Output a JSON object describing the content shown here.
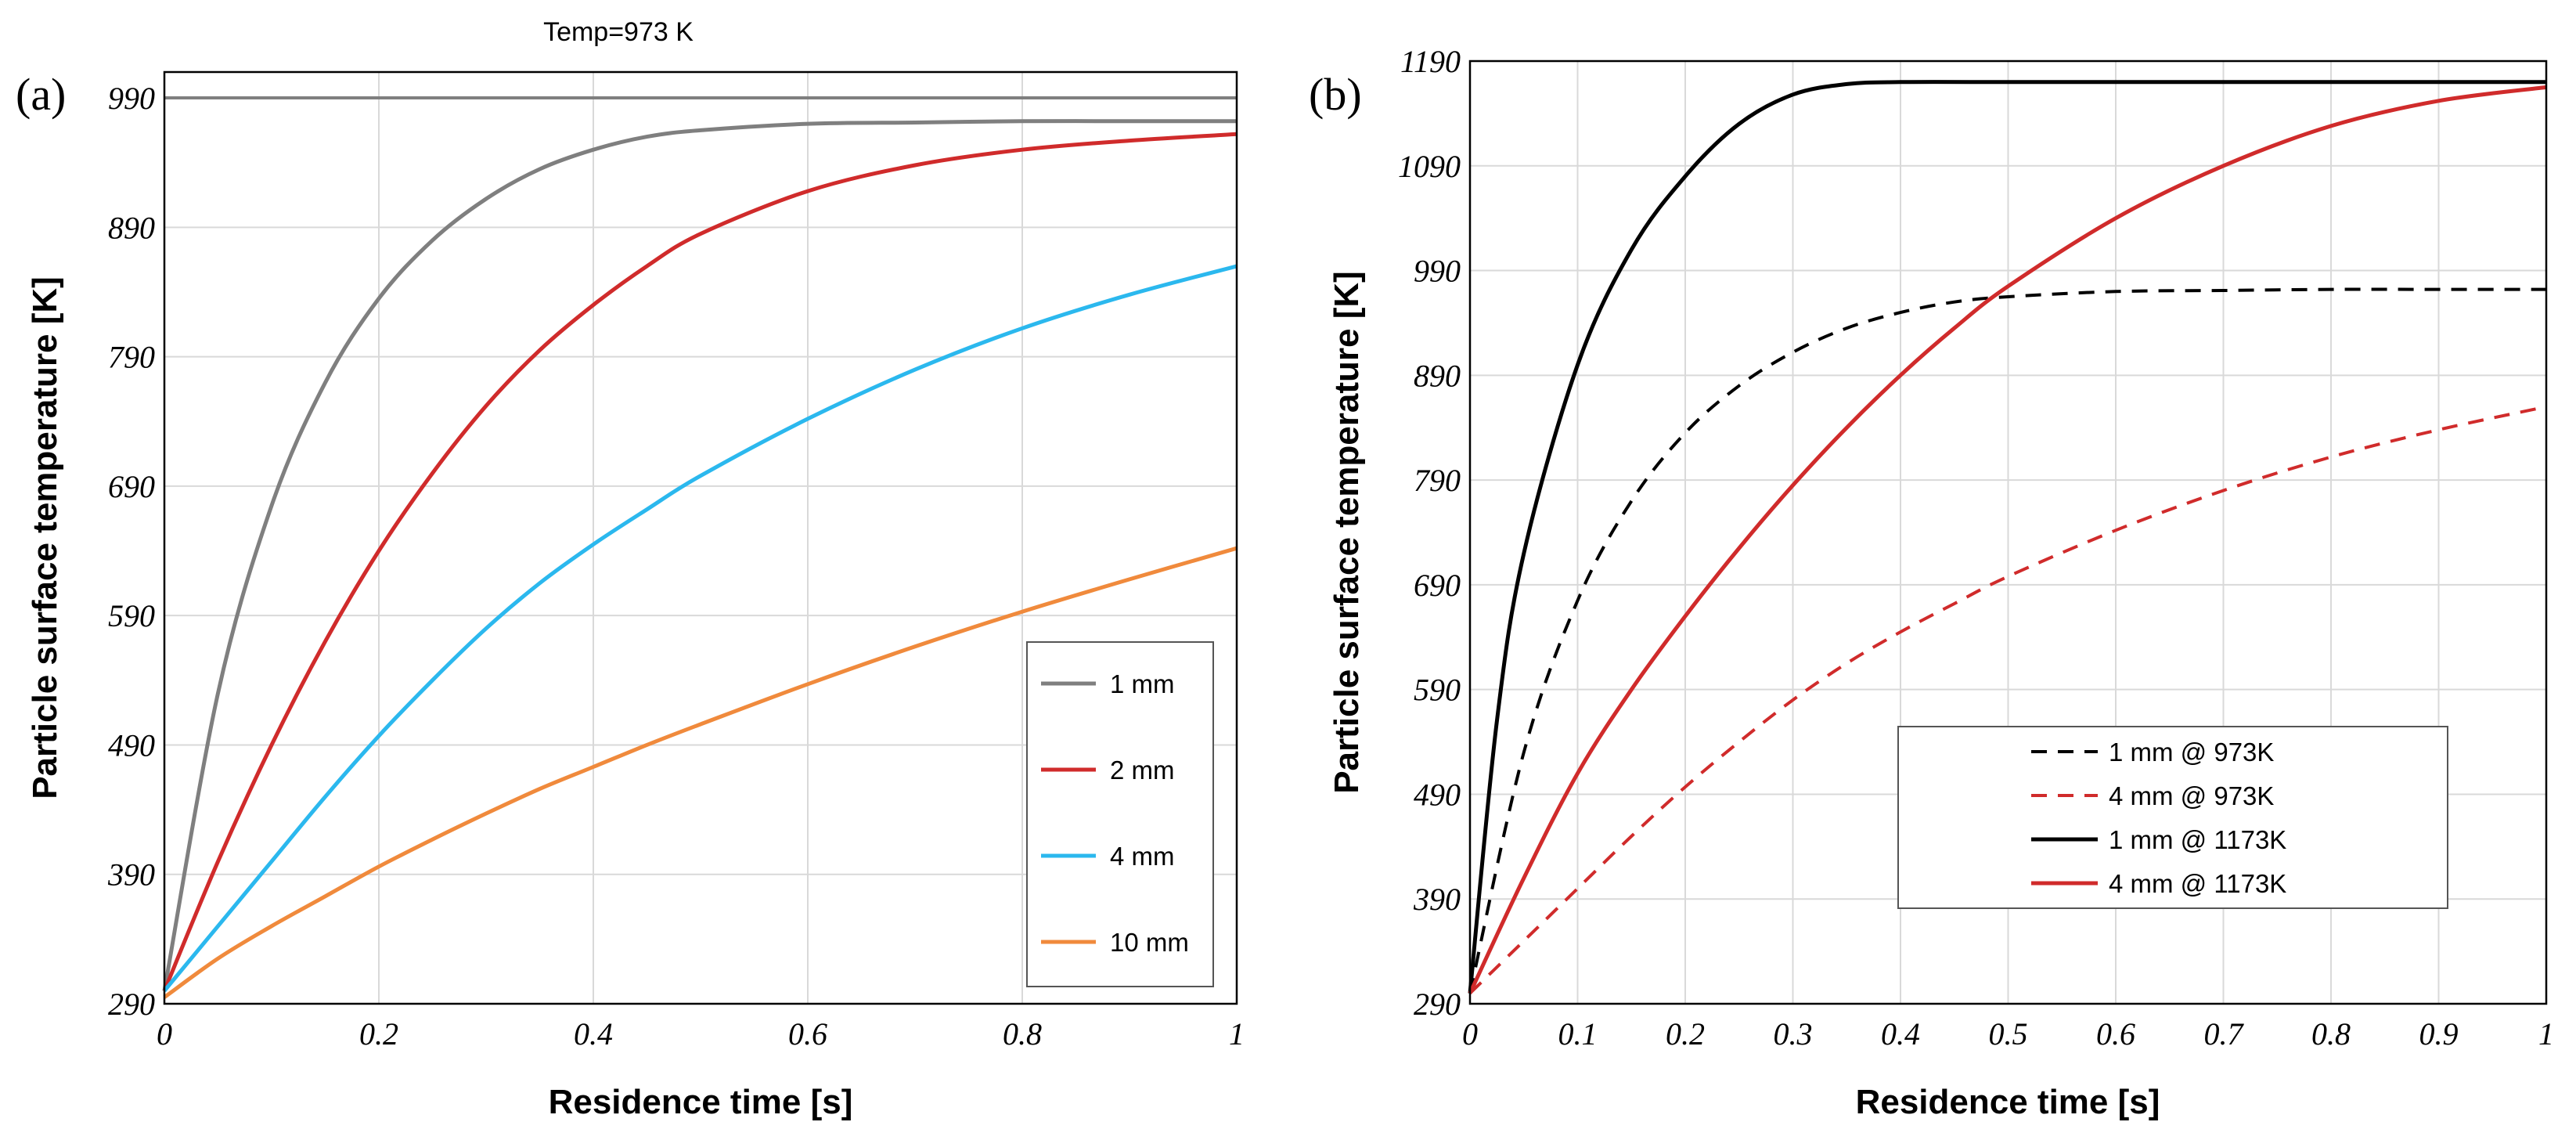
{
  "chart_data": [
    {
      "type": "line",
      "panel_label": "(a)",
      "title": "Temp=973 K",
      "xlabel": "Residence time [s]",
      "ylabel": "Particle surface temperature  [K]",
      "xlim": [
        0,
        1
      ],
      "ylim": [
        290,
        1010
      ],
      "x_ticks": [
        0,
        0.2,
        0.4,
        0.6,
        0.8,
        1
      ],
      "x_tick_labels": [
        "0",
        "0.2",
        "0.4",
        "0.6",
        "0.8",
        "1"
      ],
      "y_ticks": [
        290,
        390,
        490,
        590,
        690,
        790,
        890,
        990
      ],
      "y_tick_labels": [
        "290",
        "390",
        "490",
        "590",
        "690",
        "790",
        "890",
        "990"
      ],
      "grid": true,
      "legend_position": "bottom-right",
      "reference_line": {
        "y": 990,
        "color": "#7f7f7f"
      },
      "series": [
        {
          "name": "1 mm",
          "color": "#7f7f7f",
          "dash": "solid",
          "x": [
            0,
            0.05,
            0.1,
            0.15,
            0.2,
            0.25,
            0.3,
            0.35,
            0.4,
            0.45,
            0.5,
            0.6,
            0.7,
            0.8,
            0.9,
            1.0
          ],
          "y": [
            300,
            530,
            675,
            770,
            835,
            880,
            912,
            935,
            950,
            960,
            965,
            970,
            971,
            972,
            972,
            972
          ]
        },
        {
          "name": "2 mm",
          "color": "#d02b2b",
          "dash": "solid",
          "x": [
            0,
            0.05,
            0.1,
            0.15,
            0.2,
            0.25,
            0.3,
            0.35,
            0.4,
            0.45,
            0.5,
            0.6,
            0.7,
            0.8,
            0.9,
            1.0
          ],
          "y": [
            300,
            400,
            490,
            570,
            640,
            700,
            752,
            795,
            830,
            860,
            885,
            918,
            938,
            950,
            957,
            962
          ]
        },
        {
          "name": "4 mm",
          "color": "#2bb8ee",
          "dash": "solid",
          "x": [
            0,
            0.05,
            0.1,
            0.15,
            0.2,
            0.25,
            0.3,
            0.35,
            0.4,
            0.45,
            0.5,
            0.6,
            0.7,
            0.8,
            0.9,
            1.0
          ],
          "y": [
            300,
            350,
            400,
            450,
            497,
            540,
            580,
            615,
            645,
            672,
            698,
            742,
            780,
            812,
            838,
            860
          ]
        },
        {
          "name": "10 mm",
          "color": "#f08a3c",
          "dash": "solid",
          "x": [
            0,
            0.05,
            0.1,
            0.15,
            0.2,
            0.25,
            0.3,
            0.35,
            0.4,
            0.45,
            0.5,
            0.6,
            0.7,
            0.8,
            0.9,
            1.0
          ],
          "y": [
            295,
            325,
            350,
            373,
            396,
            417,
            437,
            456,
            473,
            490,
            506,
            537,
            566,
            593,
            618,
            642
          ]
        }
      ]
    },
    {
      "type": "line",
      "panel_label": "(b)",
      "title": "",
      "xlabel": "Residence time [s]",
      "ylabel": "Particle surface temperature  [K]",
      "xlim": [
        0,
        1
      ],
      "ylim": [
        290,
        1190
      ],
      "x_ticks": [
        0,
        0.1,
        0.2,
        0.3,
        0.4,
        0.5,
        0.6,
        0.7,
        0.8,
        0.9,
        1
      ],
      "x_tick_labels": [
        "0",
        "0.1",
        "0.2",
        "0.3",
        "0.4",
        "0.5",
        "0.6",
        "0.7",
        "0.8",
        "0.9",
        "1"
      ],
      "y_ticks": [
        290,
        390,
        490,
        590,
        690,
        790,
        890,
        990,
        1090,
        1190
      ],
      "y_tick_labels": [
        "290",
        "390",
        "490",
        "590",
        "690",
        "790",
        "890",
        "990",
        "1090",
        "1190"
      ],
      "grid": true,
      "legend_position": "center-right",
      "series": [
        {
          "name": "1 mm @ 973K",
          "color": "#000000",
          "dash": "dashed",
          "x": [
            0,
            0.05,
            0.1,
            0.15,
            0.2,
            0.25,
            0.3,
            0.35,
            0.4,
            0.45,
            0.5,
            0.6,
            0.7,
            0.8,
            0.9,
            1.0
          ],
          "y": [
            300,
            530,
            675,
            770,
            835,
            880,
            912,
            935,
            950,
            960,
            965,
            970,
            971,
            972,
            972,
            972
          ]
        },
        {
          "name": "4 mm @ 973K",
          "color": "#d02b2b",
          "dash": "dashed",
          "x": [
            0,
            0.05,
            0.1,
            0.15,
            0.2,
            0.25,
            0.3,
            0.35,
            0.4,
            0.45,
            0.5,
            0.6,
            0.7,
            0.8,
            0.9,
            1.0
          ],
          "y": [
            300,
            350,
            400,
            450,
            497,
            540,
            580,
            615,
            645,
            672,
            698,
            742,
            780,
            812,
            838,
            860
          ]
        },
        {
          "name": "1 mm @ 1173K",
          "color": "#000000",
          "dash": "solid",
          "x": [
            0,
            0.025,
            0.05,
            0.1,
            0.15,
            0.2,
            0.25,
            0.3,
            0.35,
            0.4,
            0.5,
            0.6,
            0.7,
            0.8,
            0.9,
            1.0
          ],
          "y": [
            300,
            560,
            720,
            900,
            1010,
            1080,
            1130,
            1158,
            1168,
            1170,
            1170,
            1170,
            1170,
            1170,
            1170,
            1170
          ]
        },
        {
          "name": "4 mm @ 1173K",
          "color": "#d02b2b",
          "dash": "solid",
          "x": [
            0,
            0.05,
            0.1,
            0.15,
            0.2,
            0.25,
            0.3,
            0.35,
            0.4,
            0.45,
            0.5,
            0.6,
            0.7,
            0.8,
            0.9,
            1.0
          ],
          "y": [
            300,
            410,
            510,
            590,
            660,
            725,
            785,
            840,
            890,
            935,
            975,
            1040,
            1090,
            1128,
            1152,
            1165
          ]
        }
      ]
    }
  ]
}
